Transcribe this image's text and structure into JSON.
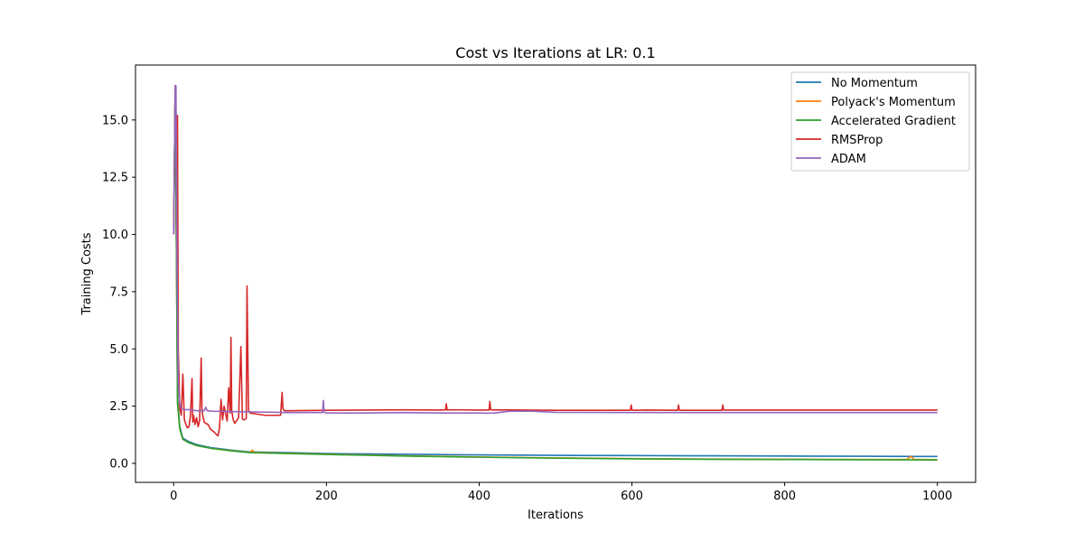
{
  "chart_data": {
    "type": "line",
    "title": "Cost vs Iterations at LR: 0.1",
    "xlabel": "Iterations",
    "ylabel": "Training Costs",
    "xlim": [
      -50,
      1050
    ],
    "ylim": [
      -0.83,
      17.4
    ],
    "xticks": [
      0,
      200,
      400,
      600,
      800,
      1000
    ],
    "xtick_labels": [
      "0",
      "200",
      "400",
      "600",
      "800",
      "1000"
    ],
    "yticks": [
      0,
      2.5,
      5,
      7.5,
      10,
      12.5,
      15
    ],
    "ytick_labels": [
      "0.0",
      "2.5",
      "5.0",
      "7.5",
      "10.0",
      "12.5",
      "15.0"
    ],
    "grid": false,
    "legend_position": "top-right",
    "series": [
      {
        "name": "No Momentum",
        "color": "#1f77b4",
        "x": [
          0,
          2,
          3,
          5,
          8,
          12,
          20,
          30,
          50,
          75,
          100,
          150,
          200,
          300,
          400,
          500,
          600,
          700,
          800,
          900,
          1000
        ],
        "y": [
          10.0,
          16.5,
          12.0,
          3.0,
          1.6,
          1.1,
          0.95,
          0.82,
          0.68,
          0.58,
          0.5,
          0.47,
          0.43,
          0.4,
          0.37,
          0.35,
          0.34,
          0.33,
          0.32,
          0.31,
          0.3
        ]
      },
      {
        "name": "Polyack's Momentum",
        "color": "#ff7f0e",
        "x": [
          0,
          2,
          3,
          5,
          8,
          12,
          20,
          30,
          50,
          75,
          100,
          103,
          106,
          150,
          200,
          300,
          400,
          500,
          600,
          700,
          800,
          900,
          960,
          965,
          970,
          1000
        ],
        "y": [
          10.0,
          16.5,
          12.0,
          2.8,
          1.5,
          1.05,
          0.9,
          0.78,
          0.65,
          0.56,
          0.48,
          0.58,
          0.48,
          0.44,
          0.4,
          0.33,
          0.28,
          0.24,
          0.21,
          0.19,
          0.18,
          0.17,
          0.17,
          0.3,
          0.17,
          0.16
        ]
      },
      {
        "name": "Accelerated Gradient",
        "color": "#2ca02c",
        "x": [
          0,
          2,
          3,
          5,
          8,
          12,
          20,
          30,
          50,
          75,
          100,
          150,
          200,
          300,
          400,
          500,
          600,
          700,
          800,
          900,
          1000
        ],
        "y": [
          10.0,
          16.5,
          12.0,
          2.6,
          1.5,
          1.05,
          0.9,
          0.78,
          0.65,
          0.55,
          0.47,
          0.43,
          0.39,
          0.32,
          0.27,
          0.23,
          0.2,
          0.18,
          0.17,
          0.16,
          0.15
        ]
      },
      {
        "name": "RMSProp",
        "color": "#d62728",
        "x": [
          0,
          2,
          3,
          4,
          5,
          6,
          8,
          10,
          12,
          14,
          16,
          18,
          20,
          22,
          24,
          25,
          26,
          28,
          30,
          32,
          34,
          36,
          37,
          38,
          40,
          42,
          45,
          48,
          52,
          55,
          58,
          60,
          62,
          64,
          66,
          70,
          72,
          74,
          75,
          76,
          78,
          80,
          85,
          88,
          90,
          92,
          95,
          96,
          98,
          100,
          110,
          120,
          130,
          140,
          142,
          143,
          145,
          150,
          200,
          250,
          300,
          350,
          356,
          357,
          358,
          360,
          400,
          413,
          414,
          415,
          417,
          420,
          460,
          500,
          598,
          599,
          600,
          602,
          620,
          660,
          661,
          662,
          664,
          700,
          718,
          719,
          720,
          722,
          750,
          800,
          900,
          1000
        ],
        "y": [
          10.0,
          16.5,
          15.3,
          14.0,
          15.2,
          5.0,
          2.4,
          2.1,
          3.9,
          1.9,
          1.7,
          1.55,
          1.6,
          2.1,
          3.7,
          1.8,
          2.1,
          1.7,
          2.0,
          1.6,
          1.9,
          4.6,
          2.4,
          2.1,
          1.8,
          1.75,
          1.7,
          1.5,
          1.4,
          1.3,
          1.2,
          1.55,
          2.8,
          1.9,
          2.5,
          1.85,
          3.3,
          2.2,
          5.5,
          2.3,
          1.9,
          1.75,
          2.0,
          5.1,
          1.95,
          1.9,
          1.95,
          7.75,
          2.3,
          2.2,
          2.15,
          2.1,
          2.1,
          2.1,
          3.1,
          2.4,
          2.3,
          2.3,
          2.32,
          2.33,
          2.34,
          2.33,
          2.34,
          2.6,
          2.33,
          2.34,
          2.33,
          2.33,
          2.7,
          2.35,
          2.33,
          2.34,
          2.33,
          2.32,
          2.32,
          2.55,
          2.33,
          2.32,
          2.33,
          2.32,
          2.55,
          2.33,
          2.32,
          2.32,
          2.32,
          2.55,
          2.33,
          2.33,
          2.33,
          2.33,
          2.33,
          2.33
        ]
      },
      {
        "name": "ADAM",
        "color": "#9467bd",
        "x": [
          0,
          2,
          3,
          4,
          6,
          8,
          10,
          15,
          20,
          30,
          40,
          42,
          44,
          50,
          100,
          150,
          195,
          196,
          197,
          198,
          200,
          250,
          300,
          350,
          400,
          410,
          420,
          430,
          440,
          470,
          500,
          600,
          700,
          800,
          900,
          1000
        ],
        "y": [
          10.0,
          16.5,
          16.5,
          10.0,
          3.5,
          2.6,
          2.4,
          2.35,
          2.35,
          2.3,
          2.3,
          2.45,
          2.3,
          2.28,
          2.25,
          2.22,
          2.22,
          2.75,
          2.25,
          2.22,
          2.2,
          2.2,
          2.22,
          2.2,
          2.2,
          2.19,
          2.2,
          2.24,
          2.28,
          2.28,
          2.23,
          2.22,
          2.22,
          2.22,
          2.22,
          2.22
        ]
      }
    ]
  }
}
